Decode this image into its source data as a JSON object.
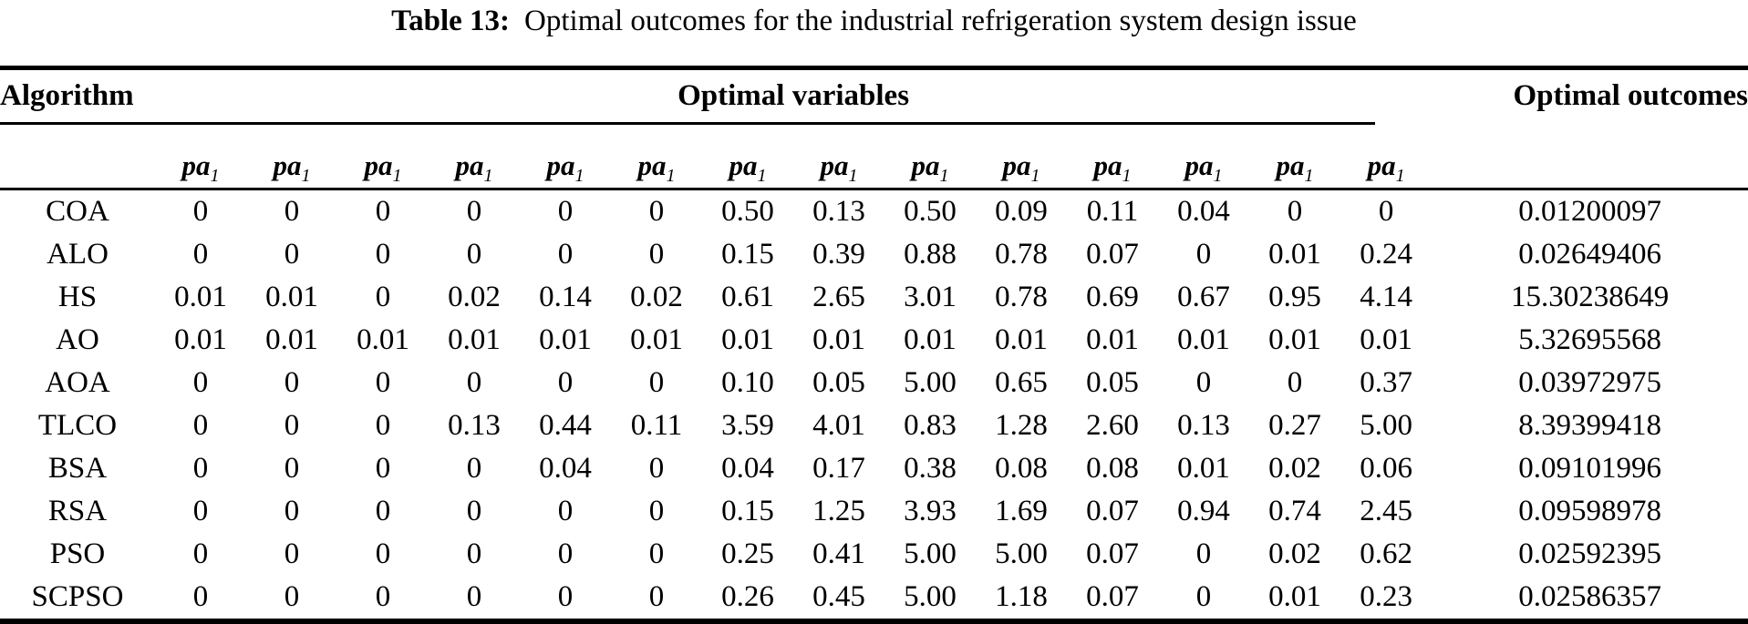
{
  "title": {
    "label": "Table 13:",
    "text": "Optimal outcomes for the industrial refrigeration system design issue"
  },
  "table": {
    "header": {
      "algorithm": "Algorithm",
      "variables": "Optimal variables",
      "outcomes": "Optimal outcomes"
    },
    "variable_label": {
      "base": "pa",
      "subscript": "1",
      "count": 14
    },
    "rows": [
      {
        "algorithm": "COA",
        "values": [
          "0",
          "0",
          "0",
          "0",
          "0",
          "0",
          "0.50",
          "0.13",
          "0.50",
          "0.09",
          "0.11",
          "0.04",
          "0",
          "0"
        ],
        "outcome": "0.01200097"
      },
      {
        "algorithm": "ALO",
        "values": [
          "0",
          "0",
          "0",
          "0",
          "0",
          "0",
          "0.15",
          "0.39",
          "0.88",
          "0.78",
          "0.07",
          "0",
          "0.01",
          "0.24"
        ],
        "outcome": "0.02649406"
      },
      {
        "algorithm": "HS",
        "values": [
          "0.01",
          "0.01",
          "0",
          "0.02",
          "0.14",
          "0.02",
          "0.61",
          "2.65",
          "3.01",
          "0.78",
          "0.69",
          "0.67",
          "0.95",
          "4.14"
        ],
        "outcome": "15.30238649"
      },
      {
        "algorithm": "AO",
        "values": [
          "0.01",
          "0.01",
          "0.01",
          "0.01",
          "0.01",
          "0.01",
          "0.01",
          "0.01",
          "0.01",
          "0.01",
          "0.01",
          "0.01",
          "0.01",
          "0.01"
        ],
        "outcome": "5.32695568"
      },
      {
        "algorithm": "AOA",
        "values": [
          "0",
          "0",
          "0",
          "0",
          "0",
          "0",
          "0.10",
          "0.05",
          "5.00",
          "0.65",
          "0.05",
          "0",
          "0",
          "0.37"
        ],
        "outcome": "0.03972975"
      },
      {
        "algorithm": "TLCO",
        "values": [
          "0",
          "0",
          "0",
          "0.13",
          "0.44",
          "0.11",
          "3.59",
          "4.01",
          "0.83",
          "1.28",
          "2.60",
          "0.13",
          "0.27",
          "5.00"
        ],
        "outcome": "8.39399418"
      },
      {
        "algorithm": "BSA",
        "values": [
          "0",
          "0",
          "0",
          "0",
          "0.04",
          "0",
          "0.04",
          "0.17",
          "0.38",
          "0.08",
          "0.08",
          "0.01",
          "0.02",
          "0.06"
        ],
        "outcome": "0.09101996"
      },
      {
        "algorithm": "RSA",
        "values": [
          "0",
          "0",
          "0",
          "0",
          "0",
          "0",
          "0.15",
          "1.25",
          "3.93",
          "1.69",
          "0.07",
          "0.94",
          "0.74",
          "2.45"
        ],
        "outcome": "0.09598978"
      },
      {
        "algorithm": "PSO",
        "values": [
          "0",
          "0",
          "0",
          "0",
          "0",
          "0",
          "0.25",
          "0.41",
          "5.00",
          "5.00",
          "0.07",
          "0",
          "0.02",
          "0.62"
        ],
        "outcome": "0.02592395"
      },
      {
        "algorithm": "SCPSO",
        "values": [
          "0",
          "0",
          "0",
          "0",
          "0",
          "0",
          "0.26",
          "0.45",
          "5.00",
          "1.18",
          "0.07",
          "0",
          "0.01",
          "0.23"
        ],
        "outcome": "0.02586357"
      }
    ]
  }
}
